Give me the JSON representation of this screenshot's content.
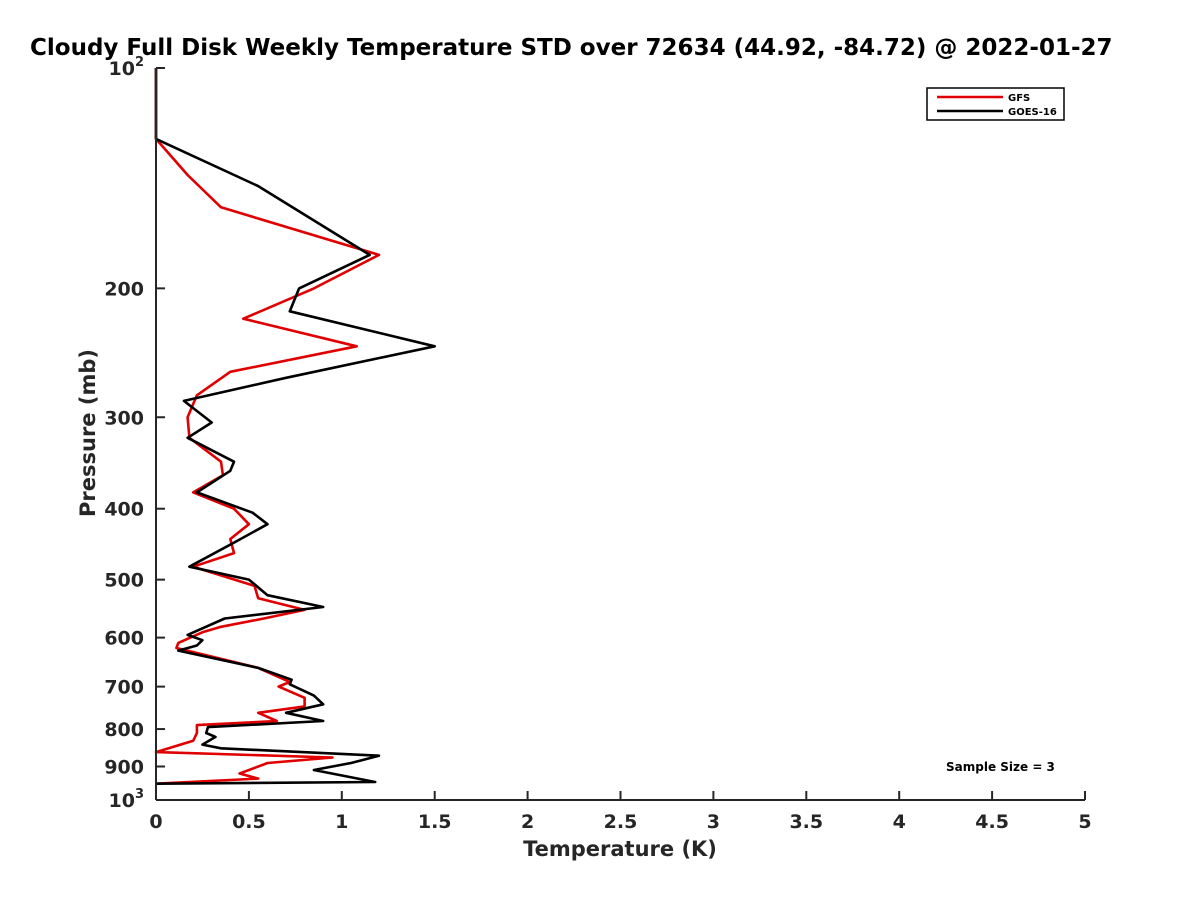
{
  "chart_data": {
    "type": "line",
    "title": "Cloudy Full Disk Weekly Temperature STD over 72634 (44.92, -84.72) @ 2022-01-27",
    "xlabel": "Temperature (K)",
    "ylabel": "Pressure (mb)",
    "xlim": [
      0,
      5
    ],
    "ylim": [
      1000,
      100
    ],
    "y_scale": "log",
    "y_reversed": true,
    "x_ticks": [
      "0",
      "0.5",
      "1",
      "1.5",
      "2",
      "2.5",
      "3",
      "3.5",
      "4",
      "4.5",
      "5"
    ],
    "y_ticks": [
      {
        "value": 100,
        "label": "10",
        "sup": "2"
      },
      {
        "value": 200,
        "label": "200",
        "sup": ""
      },
      {
        "value": 300,
        "label": "300",
        "sup": ""
      },
      {
        "value": 400,
        "label": "400",
        "sup": ""
      },
      {
        "value": 500,
        "label": "500",
        "sup": ""
      },
      {
        "value": 600,
        "label": "600",
        "sup": ""
      },
      {
        "value": 700,
        "label": "700",
        "sup": ""
      },
      {
        "value": 800,
        "label": "800",
        "sup": ""
      },
      {
        "value": 900,
        "label": "900",
        "sup": ""
      },
      {
        "value": 1000,
        "label": "10",
        "sup": "3"
      }
    ],
    "grid": false,
    "legend_position": "top-right",
    "annotation": "Sample Size = 3",
    "series": [
      {
        "name": "GFS",
        "color": "#e00000",
        "points": [
          [
            0,
            100
          ],
          [
            0,
            125
          ],
          [
            0.17,
            140
          ],
          [
            0.35,
            155
          ],
          [
            1.2,
            180
          ],
          [
            0.85,
            200
          ],
          [
            0.47,
            220
          ],
          [
            1.08,
            240
          ],
          [
            0.4,
            260
          ],
          [
            0.22,
            280
          ],
          [
            0.17,
            300
          ],
          [
            0.18,
            320
          ],
          [
            0.35,
            345
          ],
          [
            0.36,
            360
          ],
          [
            0.2,
            380
          ],
          [
            0.42,
            400
          ],
          [
            0.5,
            420
          ],
          [
            0.4,
            440
          ],
          [
            0.42,
            460
          ],
          [
            0.2,
            480
          ],
          [
            0.53,
            510
          ],
          [
            0.55,
            530
          ],
          [
            0.8,
            550
          ],
          [
            0.58,
            565
          ],
          [
            0.35,
            580
          ],
          [
            0.25,
            590
          ],
          [
            0.12,
            610
          ],
          [
            0.11,
            620
          ],
          [
            0.55,
            660
          ],
          [
            0.72,
            690
          ],
          [
            0.66,
            700
          ],
          [
            0.8,
            725
          ],
          [
            0.8,
            745
          ],
          [
            0.55,
            760
          ],
          [
            0.65,
            780
          ],
          [
            0.22,
            790
          ],
          [
            0.22,
            810
          ],
          [
            0.2,
            830
          ],
          [
            0,
            860
          ],
          [
            0.95,
            875
          ],
          [
            0.6,
            890
          ],
          [
            0.45,
            920
          ],
          [
            0.55,
            935
          ],
          [
            0,
            950
          ]
        ]
      },
      {
        "name": "GOES-16",
        "color": "#000000",
        "points": [
          [
            0,
            100
          ],
          [
            0,
            125
          ],
          [
            0.55,
            145
          ],
          [
            1.15,
            180
          ],
          [
            0.77,
            200
          ],
          [
            0.72,
            215
          ],
          [
            1.5,
            240
          ],
          [
            0.7,
            265
          ],
          [
            0.15,
            285
          ],
          [
            0.3,
            305
          ],
          [
            0.17,
            320
          ],
          [
            0.42,
            345
          ],
          [
            0.4,
            355
          ],
          [
            0.22,
            380
          ],
          [
            0.52,
            405
          ],
          [
            0.6,
            420
          ],
          [
            0.42,
            445
          ],
          [
            0.18,
            480
          ],
          [
            0.5,
            500
          ],
          [
            0.6,
            525
          ],
          [
            0.9,
            545
          ],
          [
            0.37,
            565
          ],
          [
            0.17,
            595
          ],
          [
            0.25,
            605
          ],
          [
            0.22,
            615
          ],
          [
            0.12,
            625
          ],
          [
            0.55,
            660
          ],
          [
            0.73,
            685
          ],
          [
            0.72,
            695
          ],
          [
            0.85,
            720
          ],
          [
            0.9,
            740
          ],
          [
            0.7,
            760
          ],
          [
            0.9,
            780
          ],
          [
            0.28,
            795
          ],
          [
            0.27,
            810
          ],
          [
            0.32,
            820
          ],
          [
            0.25,
            840
          ],
          [
            0.35,
            850
          ],
          [
            1.2,
            870
          ],
          [
            1.05,
            890
          ],
          [
            0.85,
            910
          ],
          [
            1.18,
            945
          ],
          [
            0,
            950
          ]
        ]
      }
    ]
  }
}
